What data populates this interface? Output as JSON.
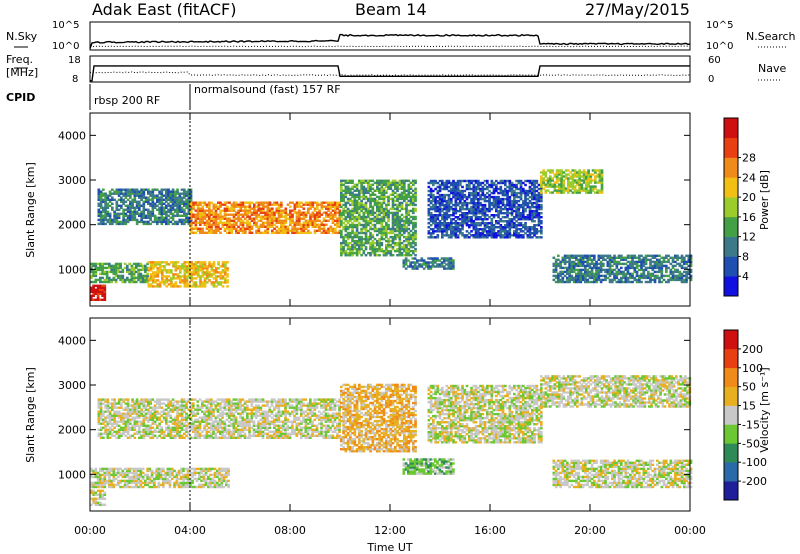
{
  "header": {
    "radar": "Adak East (fitACF)",
    "beam": "Beam 14",
    "date": "27/May/2015"
  },
  "strips": {
    "nsky": {
      "label": "N.Sky",
      "ticks": [
        "10^5",
        "10^0"
      ]
    },
    "nsearch": {
      "label": "N.Search",
      "ticks": [
        "10^5",
        "10^0"
      ]
    },
    "freq": {
      "label_line1": "Freq.",
      "label_line2": "[MHz]",
      "ticks": [
        "18",
        "8"
      ]
    },
    "nave": {
      "label": "Nave",
      "ticks": [
        "60",
        "0"
      ]
    },
    "cpid": {
      "label": "CPID",
      "segments": [
        {
          "text": "rbsp 200 RF",
          "start_hr": 0.0,
          "end_hr": 4.0
        },
        {
          "text": "normalsound (fast) 157 RF",
          "start_hr": 4.0,
          "end_hr": 24.0
        }
      ]
    }
  },
  "chart_data": [
    {
      "type": "heatmap",
      "panel": "power",
      "xlabel": "Time UT",
      "ylabel": "Slant Range [km]",
      "xlim": [
        0,
        24
      ],
      "ylim": [
        180,
        4500
      ],
      "yticks": [
        "1000",
        "2000",
        "3000",
        "4000"
      ],
      "xticks": [
        "00:00",
        "04:00",
        "08:00",
        "12:00",
        "16:00",
        "20:00",
        "00:00"
      ],
      "colorbar": {
        "label": "Power [dB]",
        "ticks": [
          "4",
          "8",
          "12",
          "16",
          "20",
          "24",
          "28"
        ],
        "colors": [
          "#1010e0",
          "#1f4fb0",
          "#3c7a8a",
          "#43a047",
          "#9ccc2c",
          "#f2c014",
          "#f08a18",
          "#e84010",
          "#d01010"
        ]
      },
      "echo_bands": [
        {
          "t0": 0.0,
          "t1": 0.6,
          "r0": 300,
          "r1": 650,
          "level": 8
        },
        {
          "t0": 0.0,
          "t1": 2.3,
          "r0": 700,
          "r1": 1150,
          "level": 3
        },
        {
          "t0": 2.3,
          "t1": 5.5,
          "r0": 600,
          "r1": 1150,
          "level": 5
        },
        {
          "t0": 0.3,
          "t1": 4.0,
          "r0": 2000,
          "r1": 2800,
          "level": 2
        },
        {
          "t0": 4.0,
          "t1": 10.0,
          "r0": 1800,
          "r1": 2500,
          "level": 6
        },
        {
          "t0": 10.0,
          "t1": 13.0,
          "r0": 1300,
          "r1": 3000,
          "level": 3
        },
        {
          "t0": 12.5,
          "t1": 14.5,
          "r0": 1000,
          "r1": 1250,
          "level": 2
        },
        {
          "t0": 13.5,
          "t1": 18.0,
          "r0": 1700,
          "r1": 3000,
          "level": 1
        },
        {
          "t0": 18.0,
          "t1": 20.5,
          "r0": 2700,
          "r1": 3200,
          "level": 4
        },
        {
          "t0": 18.5,
          "t1": 24.0,
          "r0": 700,
          "r1": 1300,
          "level": 2
        }
      ]
    },
    {
      "type": "heatmap",
      "panel": "velocity",
      "xlabel": "Time UT",
      "ylabel": "Slant Range [km]",
      "xlim": [
        0,
        24
      ],
      "ylim": [
        180,
        4500
      ],
      "yticks": [
        "1000",
        "2000",
        "3000",
        "4000"
      ],
      "xticks": [
        "00:00",
        "04:00",
        "08:00",
        "12:00",
        "16:00",
        "20:00",
        "00:00"
      ],
      "colorbar": {
        "label": "Velocity [m s⁻¹]",
        "ticks": [
          "200",
          "100",
          "50",
          "15",
          "-15",
          "-50",
          "-100",
          "-200"
        ],
        "colors": [
          "#1f1f9a",
          "#2a6aa8",
          "#2e8b57",
          "#6bc832",
          "#c8c8c8",
          "#e8b020",
          "#f08a18",
          "#e84010",
          "#d01010"
        ]
      },
      "echo_bands": [
        {
          "t0": 0.0,
          "t1": 0.6,
          "r0": 300,
          "r1": 650,
          "level": 4
        },
        {
          "t0": 0.0,
          "t1": 5.5,
          "r0": 700,
          "r1": 1150,
          "level": 4
        },
        {
          "t0": 0.3,
          "t1": 10.0,
          "r0": 1800,
          "r1": 2700,
          "level": 4
        },
        {
          "t0": 10.0,
          "t1": 13.0,
          "r0": 1500,
          "r1": 3000,
          "level": 5
        },
        {
          "t0": 12.5,
          "t1": 14.5,
          "r0": 1000,
          "r1": 1350,
          "level": 3
        },
        {
          "t0": 13.5,
          "t1": 18.0,
          "r0": 1700,
          "r1": 3000,
          "level": 4
        },
        {
          "t0": 18.0,
          "t1": 24.0,
          "r0": 2500,
          "r1": 3200,
          "level": 4
        },
        {
          "t0": 18.5,
          "t1": 24.0,
          "r0": 700,
          "r1": 1300,
          "level": 4
        }
      ]
    }
  ]
}
